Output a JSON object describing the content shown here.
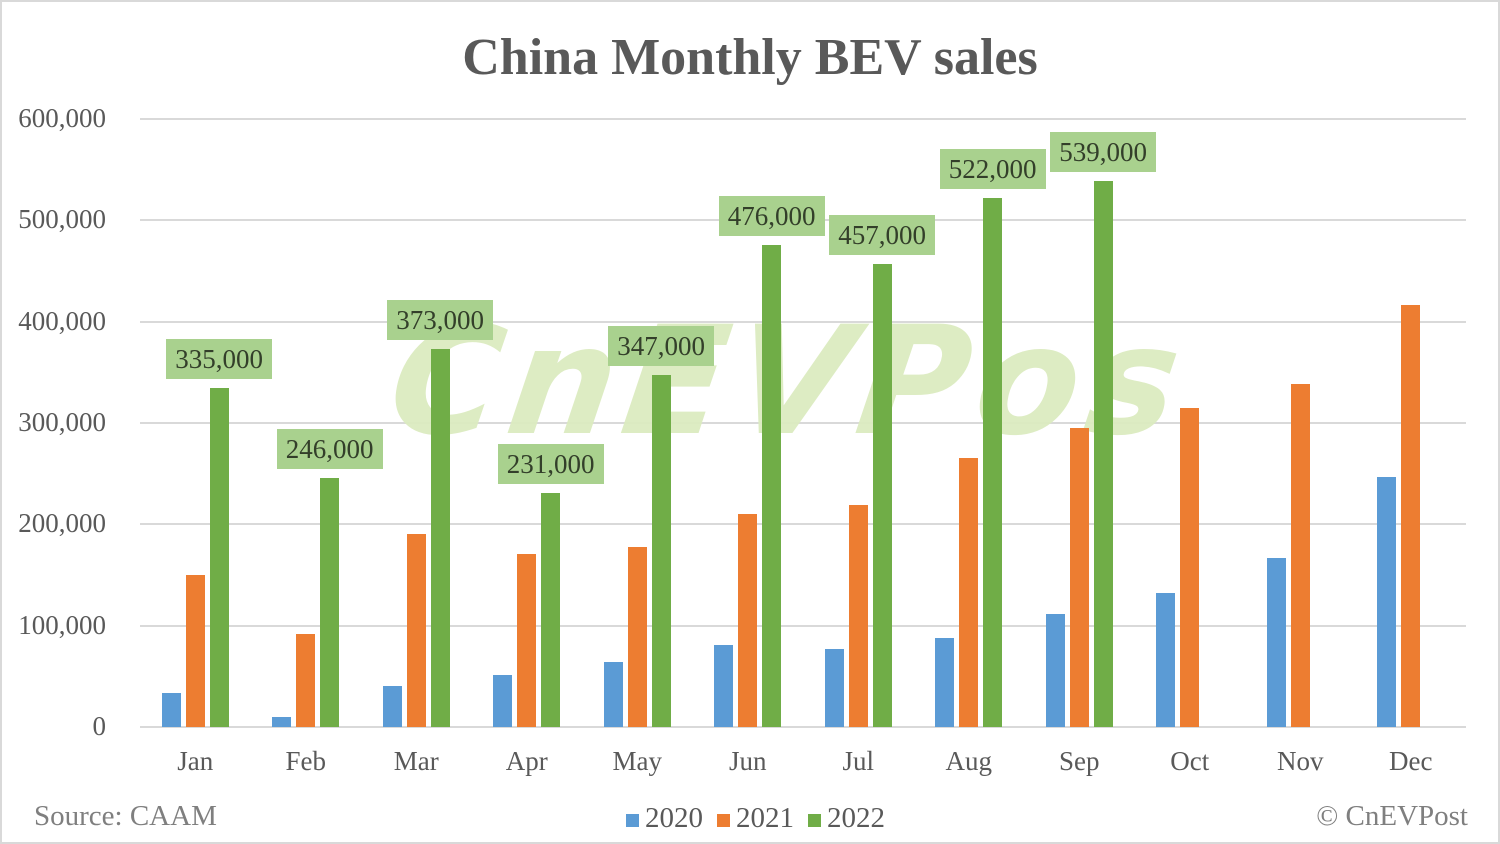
{
  "chart_data": {
    "type": "bar",
    "title": "China Monthly BEV sales",
    "xlabel": "",
    "ylabel": "",
    "ylim": [
      0,
      600000
    ],
    "yticks": [
      "0",
      "100,000",
      "200,000",
      "300,000",
      "400,000",
      "500,000",
      "600,000"
    ],
    "grid": true,
    "legend_position": "bottom",
    "categories": [
      "Jan",
      "Feb",
      "Mar",
      "Apr",
      "May",
      "Jun",
      "Jul",
      "Aug",
      "Sep",
      "Oct",
      "Nov",
      "Dec"
    ],
    "series": [
      {
        "name": "2020",
        "color": "#5b9bd5",
        "values": [
          34000,
          10000,
          40000,
          51000,
          64000,
          81000,
          77000,
          88000,
          112000,
          132000,
          167000,
          247000
        ]
      },
      {
        "name": "2021",
        "color": "#ed7d31",
        "values": [
          150000,
          92000,
          190000,
          171000,
          178000,
          210000,
          219000,
          265000,
          295000,
          315000,
          338000,
          416000
        ]
      },
      {
        "name": "2022",
        "color": "#70ad47",
        "values": [
          335000,
          246000,
          373000,
          231000,
          347000,
          476000,
          457000,
          522000,
          539000,
          null,
          null,
          null
        ]
      }
    ],
    "data_labels": {
      "series": "2022",
      "labels": [
        "335,000",
        "246,000",
        "373,000",
        "231,000",
        "347,000",
        "476,000",
        "457,000",
        "522,000",
        "539,000"
      ],
      "label_bg": "#a9d18e"
    },
    "annotations": {
      "source": "Source: CAAM",
      "copyright": "© CnEVPost",
      "watermark": "CnEVPost"
    }
  }
}
